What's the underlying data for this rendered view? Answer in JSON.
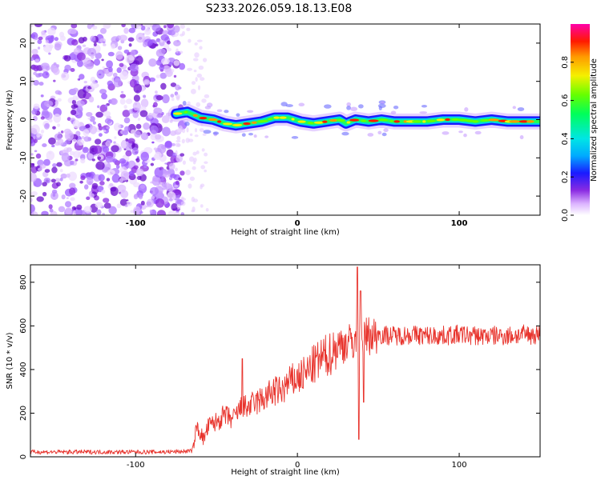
{
  "title": "S233.2026.059.18.13.E08",
  "colors": {
    "snr_line": "#e8332c",
    "noise_speckle": "#9b59ff",
    "frame": "#000000",
    "background": "#ffffff"
  },
  "chart_data": [
    {
      "type": "heatmap",
      "name": "spectrogram",
      "xlabel": "Height of straight line (km)",
      "ylabel": "Frequency (Hz)",
      "xlim": [
        -165,
        150
      ],
      "ylim": [
        -25,
        25
      ],
      "x_ticks": [
        -100,
        0,
        100
      ],
      "y_ticks": [
        -20,
        -10,
        0,
        10,
        20
      ],
      "noise_region_x": [
        -165,
        -73
      ],
      "signal_onset_x": -75,
      "ridge_frequency_hz": [
        [
          -75,
          1.5
        ],
        [
          -68,
          2.0
        ],
        [
          -60,
          0.5
        ],
        [
          -52,
          0.0
        ],
        [
          -45,
          -1.0
        ],
        [
          -38,
          -1.5
        ],
        [
          -30,
          -1.0
        ],
        [
          -22,
          -0.5
        ],
        [
          -14,
          0.5
        ],
        [
          -6,
          0.5
        ],
        [
          2,
          -0.5
        ],
        [
          10,
          -1.0
        ],
        [
          18,
          -0.5
        ],
        [
          26,
          0.0
        ],
        [
          30,
          -1.0
        ],
        [
          36,
          0.0
        ],
        [
          44,
          -0.5
        ],
        [
          52,
          0.0
        ],
        [
          60,
          -0.5
        ],
        [
          70,
          -0.5
        ],
        [
          80,
          -0.5
        ],
        [
          90,
          0.0
        ],
        [
          100,
          0.0
        ],
        [
          110,
          -0.5
        ],
        [
          120,
          0.0
        ],
        [
          130,
          -0.5
        ],
        [
          140,
          -0.5
        ],
        [
          150,
          -0.5
        ]
      ],
      "colorbar": {
        "label": "Normalized spectral amplitude",
        "range": [
          0.0,
          1.0
        ],
        "ticks": [
          0.0,
          0.2,
          0.4,
          0.6,
          0.8
        ]
      }
    },
    {
      "type": "line",
      "name": "snr",
      "xlabel": "Height of straight line (km)",
      "ylabel": "SNR (10 * v/v)",
      "xlim": [
        -165,
        150
      ],
      "ylim": [
        0,
        880
      ],
      "x_ticks": [
        -100,
        0,
        100
      ],
      "y_ticks": [
        0,
        200,
        400,
        600,
        800
      ],
      "series": [
        {
          "name": "SNR",
          "points": [
            [
              -165,
              22
            ],
            [
              -140,
              22
            ],
            [
              -120,
              22
            ],
            [
              -100,
              22
            ],
            [
              -85,
              22
            ],
            [
              -72,
              24
            ],
            [
              -65,
              28
            ],
            [
              -62,
              140
            ],
            [
              -58,
              80
            ],
            [
              -55,
              140
            ],
            [
              -50,
              160
            ],
            [
              -45,
              190
            ],
            [
              -40,
              170
            ],
            [
              -35,
              220
            ],
            [
              -30,
              230
            ],
            [
              -25,
              250
            ],
            [
              -20,
              270
            ],
            [
              -15,
              300
            ],
            [
              -10,
              300
            ],
            [
              -5,
              340
            ],
            [
              0,
              360
            ],
            [
              5,
              380
            ],
            [
              10,
              420
            ],
            [
              15,
              450
            ],
            [
              20,
              470
            ],
            [
              25,
              510
            ],
            [
              30,
              520
            ],
            [
              35,
              530
            ],
            [
              38,
              540
            ],
            [
              40,
              560
            ],
            [
              45,
              555
            ],
            [
              50,
              560
            ],
            [
              60,
              555
            ],
            [
              70,
              560
            ],
            [
              80,
              555
            ],
            [
              90,
              555
            ],
            [
              100,
              560
            ],
            [
              110,
              555
            ],
            [
              120,
              555
            ],
            [
              130,
              555
            ],
            [
              140,
              560
            ],
            [
              150,
              560
            ]
          ],
          "spikes": [
            [
              -34,
              450
            ],
            [
              37,
              870
            ],
            [
              38,
              80
            ],
            [
              39,
              760
            ],
            [
              41,
              250
            ]
          ]
        }
      ]
    }
  ]
}
